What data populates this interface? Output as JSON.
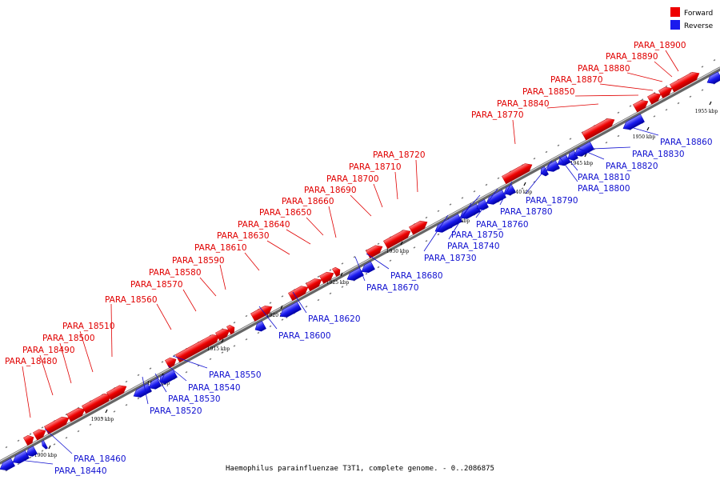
{
  "caption": "Haemophilus parainfluenzae T3T1, complete genome. - 0..2086875",
  "legend": [
    {
      "label": "Forward",
      "color": "#ee0000"
    },
    {
      "label": "Reverse",
      "color": "#1a1aee"
    }
  ],
  "scale_ticks": [
    "1900 kbp",
    "1905 kbp",
    "1910 kbp",
    "1915 kbp",
    "1920 kbp",
    "1925 kbp",
    "1930 kbp",
    "1935 kbp",
    "1940 kbp",
    "1945 kbp",
    "1950 kbp",
    "1955 kbp"
  ],
  "forward_genes": [
    "PARA_18480",
    "PARA_18490",
    "PARA_18500",
    "PARA_18510",
    "PARA_18560",
    "PARA_18570",
    "PARA_18580",
    "PARA_18590",
    "PARA_18610",
    "PARA_18630",
    "PARA_18640",
    "PARA_18650",
    "PARA_18660",
    "PARA_18690",
    "PARA_18700",
    "PARA_18710",
    "PARA_18720",
    "PARA_18770",
    "PARA_18840",
    "PARA_18850",
    "PARA_18870",
    "PARA_18880",
    "PARA_18890",
    "PARA_18900"
  ],
  "reverse_genes": [
    "PARA_18440",
    "PARA_18460",
    "PARA_18520",
    "PARA_18530",
    "PARA_18540",
    "PARA_18550",
    "PARA_18600",
    "PARA_18620",
    "PARA_18670",
    "PARA_18680",
    "PARA_18730",
    "PARA_18740",
    "PARA_18750",
    "PARA_18760",
    "PARA_18780",
    "PARA_18790",
    "PARA_18800",
    "PARA_18810",
    "PARA_18820",
    "PARA_18830",
    "PARA_18860"
  ]
}
